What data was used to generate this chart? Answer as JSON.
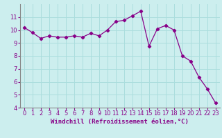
{
  "x": [
    0,
    1,
    2,
    3,
    4,
    5,
    6,
    7,
    8,
    9,
    10,
    11,
    12,
    13,
    14,
    15,
    16,
    17,
    18,
    19,
    20,
    21,
    22,
    23
  ],
  "y": [
    10.2,
    9.8,
    9.35,
    9.55,
    9.45,
    9.45,
    9.55,
    9.45,
    9.75,
    9.55,
    10.0,
    10.65,
    10.75,
    11.1,
    11.45,
    8.75,
    10.1,
    10.35,
    10.0,
    8.0,
    7.6,
    6.35,
    5.45,
    4.35
  ],
  "line_color": "#880088",
  "marker": "D",
  "markersize": 2.2,
  "linewidth": 0.9,
  "xlabel": "Windchill (Refroidissement éolien,°C)",
  "xlabel_fontsize": 6.5,
  "bg_color": "#cceeee",
  "grid_color": "#aadddd",
  "tick_color": "#880088",
  "xlim": [
    -0.5,
    23.5
  ],
  "ylim": [
    4,
    12
  ],
  "yticks": [
    4,
    5,
    6,
    7,
    8,
    9,
    10,
    11
  ],
  "xticks": [
    0,
    1,
    2,
    3,
    4,
    5,
    6,
    7,
    8,
    9,
    10,
    11,
    12,
    13,
    14,
    15,
    16,
    17,
    18,
    19,
    20,
    21,
    22,
    23
  ],
  "tick_fontsize": 6.0
}
